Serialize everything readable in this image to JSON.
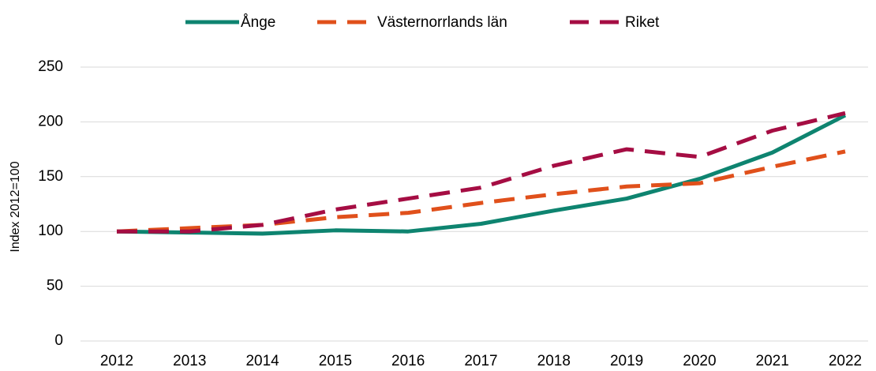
{
  "chart_data": {
    "type": "line",
    "y_label": "Index 2012=100",
    "categories": [
      "2012",
      "2013",
      "2014",
      "2015",
      "2016",
      "2017",
      "2018",
      "2019",
      "2020",
      "2021",
      "2022"
    ],
    "series": [
      {
        "name": "Ånge",
        "color": "#0e8470",
        "dash": "solid",
        "values": [
          100,
          99,
          98,
          101,
          100,
          107,
          119,
          130,
          148,
          172,
          206
        ]
      },
      {
        "name": "Västernorrlands län",
        "color": "#e0501b",
        "dash": "dashed",
        "values": [
          100,
          103,
          106,
          113,
          117,
          126,
          134,
          141,
          144,
          159,
          173
        ]
      },
      {
        "name": "Riket",
        "color": "#a50d43",
        "dash": "dashed",
        "values": [
          100,
          100,
          106,
          120,
          130,
          140,
          160,
          175,
          168,
          192,
          208
        ]
      }
    ],
    "ylim": [
      0,
      250
    ],
    "yticks": [
      0,
      50,
      100,
      150,
      200,
      250
    ],
    "grid": true,
    "legend": "top"
  }
}
